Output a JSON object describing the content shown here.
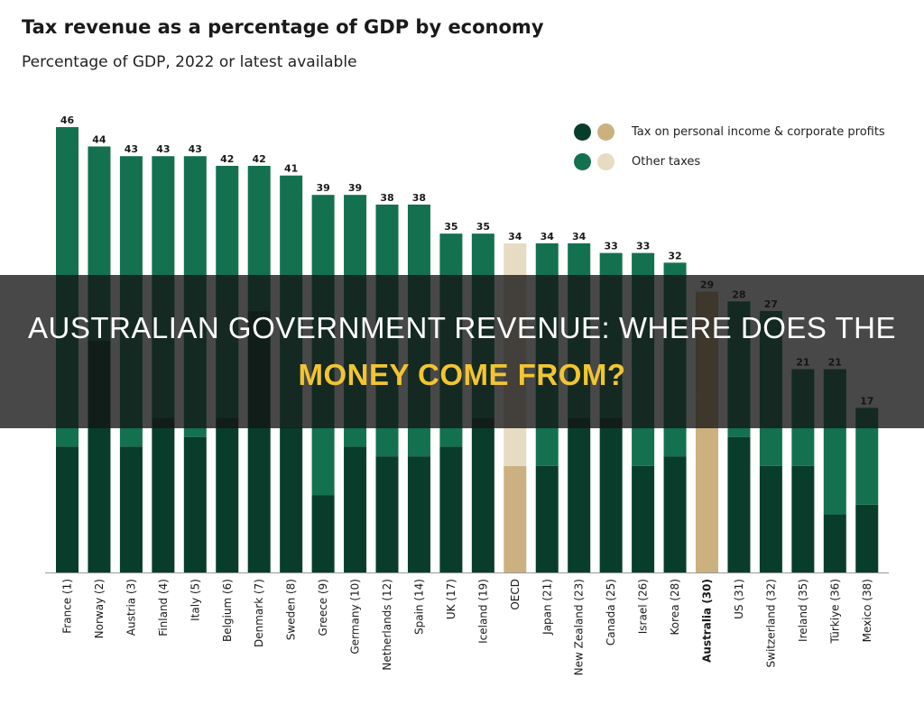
{
  "banner": {
    "line1": "AUSTRALIAN GOVERNMENT REVENUE: WHERE DOES THE",
    "line2": "MONEY COME FROM?"
  },
  "colors": {
    "income_dark": "#083d2c",
    "other_green": "#137150",
    "oecd_income": "#cbb17f",
    "oecd_other": "#e6dcc3",
    "australia": "#cbb17f",
    "banner_text": "#ffffff",
    "banner_highlight": "#f2c531"
  },
  "chart_data": {
    "type": "bar",
    "stacked": true,
    "title": "Tax revenue as a percentage of GDP by economy",
    "subtitle": "Percentage of GDP, 2022 or latest available",
    "legend": {
      "position": "top-right",
      "items": [
        "Tax on personal income & corporate profits",
        "Other taxes"
      ]
    },
    "categories": [
      "France (1)",
      "Norway (2)",
      "Austria (3)",
      "Finland (4)",
      "Italy (5)",
      "Belgium (6)",
      "Denmark (7)",
      "Sweden (8)",
      "Greece (9)",
      "Germany (10)",
      "Netherlands (12)",
      "Spain (14)",
      "UK (17)",
      "Iceland (19)",
      "OECD",
      "Japan (21)",
      "New Zealand (23)",
      "Canada (25)",
      "Israel (26)",
      "Korea (28)",
      "Australia (30)",
      "US (31)",
      "Switzerland (32)",
      "Ireland (35)",
      "Türkiye (36)",
      "Mexico (38)"
    ],
    "totals": [
      46,
      44,
      43,
      43,
      43,
      42,
      42,
      41,
      39,
      39,
      38,
      38,
      35,
      35,
      34,
      34,
      34,
      33,
      33,
      32,
      29,
      28,
      27,
      21,
      21,
      17
    ],
    "series": [
      {
        "name": "Tax on personal income & corporate profits",
        "values": [
          13,
          24,
          13,
          16,
          14,
          16,
          27,
          15,
          8,
          13,
          12,
          12,
          13,
          16,
          11,
          11,
          16,
          16,
          11,
          12,
          18,
          14,
          11,
          11,
          6,
          7
        ]
      },
      {
        "name": "Other taxes",
        "values": [
          33,
          20,
          30,
          27,
          29,
          26,
          15,
          26,
          31,
          26,
          26,
          26,
          22,
          19,
          23,
          23,
          18,
          17,
          22,
          20,
          11,
          14,
          16,
          10,
          15,
          10
        ]
      }
    ],
    "highlight": [
      "OECD",
      "Australia (30)"
    ],
    "ylim": [
      0,
      46
    ],
    "grid": false
  }
}
